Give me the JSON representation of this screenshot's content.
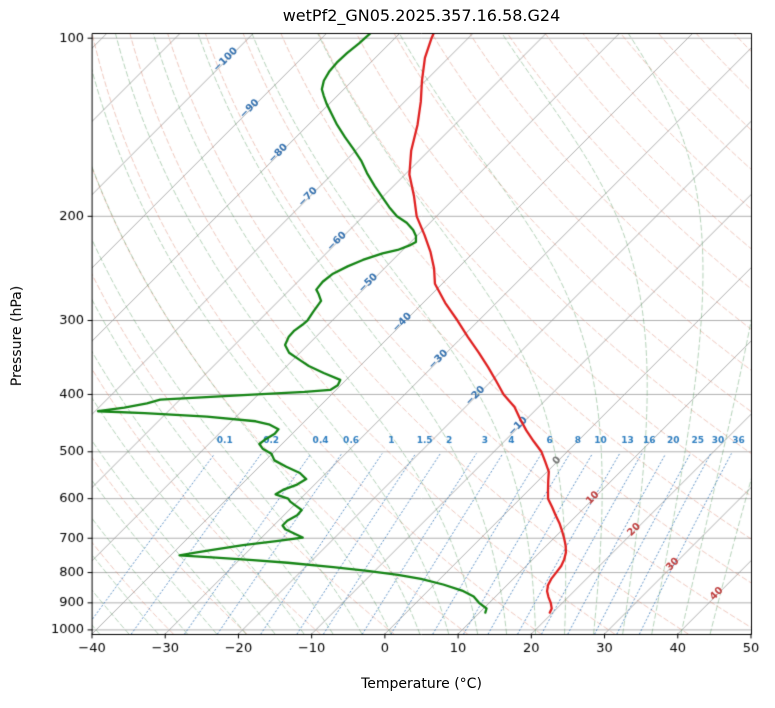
{
  "chart_data": {
    "type": "skewt-log-p",
    "title": "wetPf2_GN05.2025.357.16.58.G24",
    "xlabel": "Temperature (°C)",
    "ylabel": "Pressure (hPa)",
    "xlim": [
      -40,
      50
    ],
    "pressure_lim": [
      100,
      1000
    ],
    "skew": "45deg",
    "grid_on": true,
    "grid_color": "#b0b0b0",
    "x_ticks": [
      -40,
      -30,
      -20,
      -10,
      0,
      10,
      20,
      30,
      40,
      50
    ],
    "x_tick_labels": [
      "−40",
      "−30",
      "−20",
      "−10",
      "0",
      "10",
      "20",
      "30",
      "40",
      "50"
    ],
    "y_ticks": [
      100,
      200,
      300,
      400,
      500,
      600,
      700,
      800,
      900,
      1000
    ],
    "isotherms": {
      "start": -160,
      "end": 50,
      "step": 10,
      "color": "rgba(150,150,150,0.75)",
      "labels": [
        [
          -100,
          109
        ],
        [
          -90,
          132
        ],
        [
          -80,
          157
        ],
        [
          -70,
          186
        ],
        [
          -60,
          221
        ],
        [
          -50,
          260
        ],
        [
          -40,
          303
        ],
        [
          -30,
          350
        ],
        [
          -20,
          403
        ],
        [
          -10,
          454
        ],
        [
          0,
          519
        ],
        [
          10,
          600
        ],
        [
          20,
          679
        ],
        [
          30,
          777
        ],
        [
          40,
          871
        ]
      ],
      "label_colors": {
        "negative": "#3572b0",
        "zero": "#777777",
        "positive": "#c04040"
      }
    },
    "dry_adiabats": {
      "theta_start_c": -30,
      "theta_end_c": 200,
      "step_c": 10,
      "color": "rgba(214,120,96,0.40)"
    },
    "moist_adiabats": {
      "t0_start_c": -40,
      "t0_end_c": 44,
      "step_c": 4,
      "color": "rgba(80,150,90,0.42)"
    },
    "mixing_ratio_lines": {
      "values_g_kg": [
        0.1,
        0.2,
        0.4,
        0.6,
        1,
        1.5,
        2,
        3,
        4,
        6,
        8,
        10,
        13,
        16,
        20,
        25,
        30,
        36
      ],
      "line_color": "rgba(70,130,190,0.85)",
      "label_color": "#2f7fc1",
      "top_pressure": 500,
      "label_pressure": 478
    },
    "temperature_profile": {
      "name": "temperature",
      "color": "#e02020",
      "points_p_t": [
        [
          935,
          19.6
        ],
        [
          920,
          19.3
        ],
        [
          900,
          18.4
        ],
        [
          880,
          17.3
        ],
        [
          860,
          16.3
        ],
        [
          840,
          15.6
        ],
        [
          820,
          15.2
        ],
        [
          800,
          15.0
        ],
        [
          780,
          14.8
        ],
        [
          760,
          14.3
        ],
        [
          740,
          13.6
        ],
        [
          720,
          12.6
        ],
        [
          700,
          11.4
        ],
        [
          680,
          10.1
        ],
        [
          660,
          8.7
        ],
        [
          640,
          7.1
        ],
        [
          620,
          5.5
        ],
        [
          600,
          3.8
        ],
        [
          580,
          2.6
        ],
        [
          560,
          1.4
        ],
        [
          540,
          0.2
        ],
        [
          520,
          -1.6
        ],
        [
          500,
          -3.5
        ],
        [
          480,
          -6.0
        ],
        [
          460,
          -8.5
        ],
        [
          440,
          -10.9
        ],
        [
          420,
          -13.3
        ],
        [
          400,
          -16.5
        ],
        [
          380,
          -19.3
        ],
        [
          360,
          -22.3
        ],
        [
          340,
          -25.6
        ],
        [
          320,
          -29.2
        ],
        [
          300,
          -32.9
        ],
        [
          280,
          -37.0
        ],
        [
          260,
          -41.0
        ],
        [
          245,
          -43.2
        ],
        [
          230,
          -45.9
        ],
        [
          215,
          -49.1
        ],
        [
          200,
          -52.7
        ],
        [
          185,
          -55.8
        ],
        [
          170,
          -59.4
        ],
        [
          155,
          -62.4
        ],
        [
          140,
          -65.1
        ],
        [
          128,
          -67.8
        ],
        [
          118,
          -70.5
        ],
        [
          108,
          -73.2
        ],
        [
          100,
          -75.0
        ],
        [
          98,
          -75.4
        ]
      ]
    },
    "dewpoint_profile": {
      "name": "dewpoint",
      "color": "#148414",
      "points_p_t": [
        [
          935,
          10.8
        ],
        [
          920,
          10.4
        ],
        [
          900,
          8.6
        ],
        [
          878,
          7.0
        ],
        [
          858,
          4.6
        ],
        [
          838,
          1.2
        ],
        [
          820,
          -2.6
        ],
        [
          807,
          -6.3
        ],
        [
          795,
          -11.0
        ],
        [
          783,
          -16.2
        ],
        [
          770,
          -23.0
        ],
        [
          762,
          -28.1
        ],
        [
          755,
          -33.5
        ],
        [
          748,
          -38.8
        ],
        [
          740,
          -37.0
        ],
        [
          730,
          -34.5
        ],
        [
          719,
          -31.5
        ],
        [
          708,
          -27.5
        ],
        [
          698,
          -24.4
        ],
        [
          688,
          -26.0
        ],
        [
          676,
          -27.9
        ],
        [
          666,
          -28.8
        ],
        [
          654,
          -28.8
        ],
        [
          640,
          -28.2
        ],
        [
          627,
          -28.3
        ],
        [
          616,
          -29.8
        ],
        [
          607,
          -31.0
        ],
        [
          600,
          -31.7
        ],
        [
          590,
          -34.0
        ],
        [
          580,
          -33.6
        ],
        [
          568,
          -32.4
        ],
        [
          556,
          -31.9
        ],
        [
          543,
          -33.6
        ],
        [
          530,
          -36.3
        ],
        [
          517,
          -38.8
        ],
        [
          504,
          -40.1
        ],
        [
          494,
          -42.0
        ],
        [
          485,
          -43.1
        ],
        [
          476,
          -42.9
        ],
        [
          466,
          -42.4
        ],
        [
          458,
          -42.5
        ],
        [
          450,
          -44.3
        ],
        [
          444,
          -46.7
        ],
        [
          436,
          -54.0
        ],
        [
          430,
          -63.0
        ],
        [
          427,
          -69.6
        ],
        [
          421,
          -66.5
        ],
        [
          414,
          -64.0
        ],
        [
          408,
          -62.7
        ],
        [
          401,
          -52.0
        ],
        [
          396,
          -44.0
        ],
        [
          393,
          -40.8
        ],
        [
          386,
          -40.4
        ],
        [
          378,
          -40.8
        ],
        [
          368,
          -44.0
        ],
        [
          358,
          -47.0
        ],
        [
          350,
          -49.0
        ],
        [
          340,
          -51.5
        ],
        [
          330,
          -53.1
        ],
        [
          320,
          -53.7
        ],
        [
          312,
          -53.8
        ],
        [
          305,
          -53.5
        ],
        [
          300,
          -53.4
        ],
        [
          290,
          -53.8
        ],
        [
          278,
          -54.2
        ],
        [
          270,
          -55.6
        ],
        [
          266,
          -56.4
        ],
        [
          258,
          -56.6
        ],
        [
          250,
          -56.3
        ],
        [
          243,
          -55.3
        ],
        [
          237,
          -54.1
        ],
        [
          231,
          -52.3
        ],
        [
          228,
          -50.7
        ],
        [
          224,
          -49.7
        ],
        [
          221,
          -49.3
        ],
        [
          216,
          -50.1
        ],
        [
          211,
          -51.3
        ],
        [
          205,
          -53.2
        ],
        [
          200,
          -55.4
        ],
        [
          193,
          -57.7
        ],
        [
          186,
          -59.9
        ],
        [
          178,
          -62.5
        ],
        [
          169,
          -65.4
        ],
        [
          161,
          -67.9
        ],
        [
          154,
          -70.5
        ],
        [
          147,
          -73.3
        ],
        [
          140,
          -76.1
        ],
        [
          134,
          -78.4
        ],
        [
          129,
          -80.4
        ],
        [
          125,
          -81.9
        ],
        [
          122,
          -83.0
        ],
        [
          118,
          -83.9
        ],
        [
          114,
          -84.4
        ],
        [
          110,
          -84.6
        ],
        [
          106,
          -84.5
        ],
        [
          102,
          -84.2
        ],
        [
          100,
          -84.1
        ],
        [
          98,
          -84.0
        ]
      ]
    }
  }
}
